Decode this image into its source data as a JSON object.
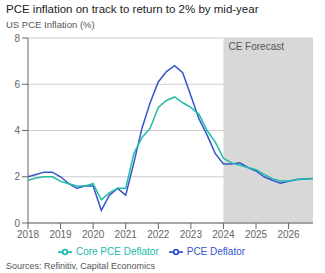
{
  "chart_data": {
    "type": "line",
    "title": "PCE inflation on track to return to 2% by mid-year",
    "ylabel": "US PCE Inflation (%)",
    "source": "Sources: Refinitiv, Capital Economics",
    "x": [
      2018.0,
      2018.25,
      2018.5,
      2018.75,
      2019.0,
      2019.25,
      2019.5,
      2019.75,
      2020.0,
      2020.25,
      2020.5,
      2020.75,
      2021.0,
      2021.25,
      2021.5,
      2021.75,
      2022.0,
      2022.25,
      2022.5,
      2022.75,
      2023.0,
      2023.25,
      2023.5,
      2023.75,
      2024.0,
      2024.25,
      2024.5,
      2024.75,
      2025.0,
      2025.25,
      2025.5,
      2025.75,
      2026.0,
      2026.25,
      2026.5,
      2026.75
    ],
    "series": [
      {
        "name": "PCE Deflator",
        "color": "#3355cc",
        "values": [
          2.0,
          2.1,
          2.2,
          2.2,
          2.0,
          1.7,
          1.5,
          1.6,
          1.6,
          0.55,
          1.2,
          1.5,
          1.2,
          2.6,
          4.1,
          5.2,
          6.1,
          6.55,
          6.8,
          6.5,
          5.5,
          4.5,
          3.8,
          3.0,
          2.55,
          2.55,
          2.6,
          2.4,
          2.25,
          2.0,
          1.85,
          1.72,
          1.8,
          1.88,
          1.9,
          1.92
        ]
      },
      {
        "name": "Core PCE Deflator",
        "color": "#22bbaa",
        "values": [
          1.85,
          1.95,
          2.0,
          2.0,
          1.8,
          1.7,
          1.6,
          1.6,
          1.7,
          1.0,
          1.3,
          1.5,
          1.5,
          3.0,
          3.7,
          4.1,
          5.0,
          5.3,
          5.45,
          5.2,
          5.0,
          4.7,
          4.0,
          3.5,
          2.8,
          2.6,
          2.5,
          2.4,
          2.3,
          2.1,
          1.92,
          1.82,
          1.82,
          1.88,
          1.9,
          1.92
        ]
      }
    ],
    "shaded_region": {
      "x0": 2024.0,
      "x1": 2026.75,
      "color": "#d8d8d8",
      "label": "CE Forecast"
    },
    "xlim": [
      2018.0,
      2026.75
    ],
    "xticks": [
      2018,
      2019,
      2020,
      2021,
      2022,
      2023,
      2024,
      2025,
      2026
    ],
    "ylim": [
      0,
      8
    ],
    "yticks": [
      0,
      2,
      4,
      6,
      8
    ],
    "grid": true,
    "legend": "bottom"
  }
}
